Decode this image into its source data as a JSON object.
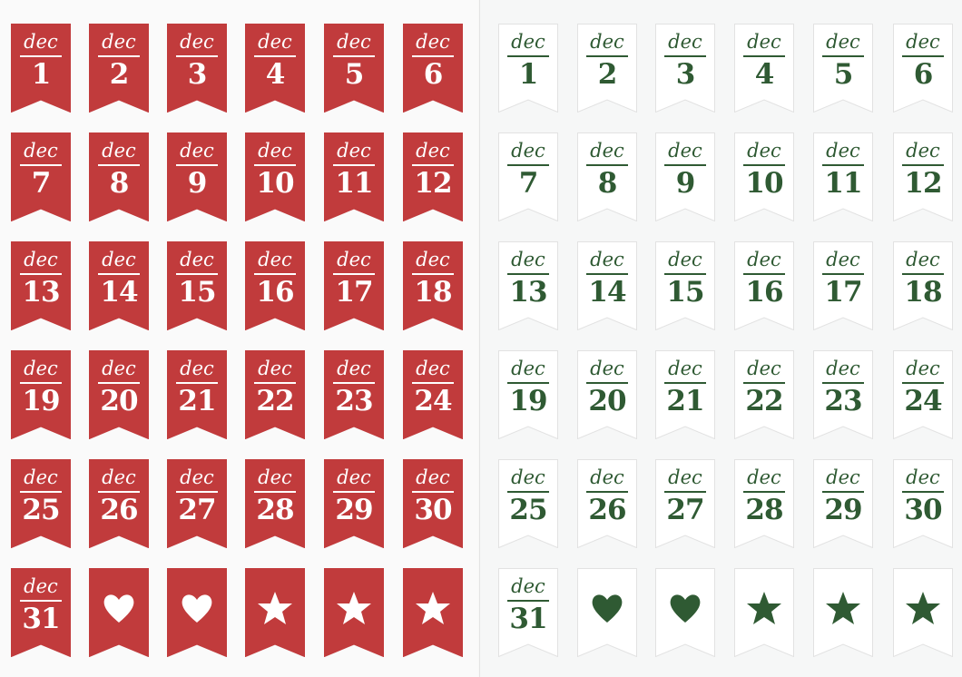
{
  "colors": {
    "red": "#c13b3c",
    "green": "#2f5a33",
    "white": "#ffffff",
    "flag_border": "#e2e2e2"
  },
  "sheets": [
    {
      "name": "red-sheet",
      "flag_color": "#c13b3c",
      "text_color": "#ffffff",
      "stickers": [
        {
          "month": "dec",
          "day": "1"
        },
        {
          "month": "dec",
          "day": "2"
        },
        {
          "month": "dec",
          "day": "3"
        },
        {
          "month": "dec",
          "day": "4"
        },
        {
          "month": "dec",
          "day": "5"
        },
        {
          "month": "dec",
          "day": "6"
        },
        {
          "month": "dec",
          "day": "7"
        },
        {
          "month": "dec",
          "day": "8"
        },
        {
          "month": "dec",
          "day": "9"
        },
        {
          "month": "dec",
          "day": "10"
        },
        {
          "month": "dec",
          "day": "11"
        },
        {
          "month": "dec",
          "day": "12"
        },
        {
          "month": "dec",
          "day": "13"
        },
        {
          "month": "dec",
          "day": "14"
        },
        {
          "month": "dec",
          "day": "15"
        },
        {
          "month": "dec",
          "day": "16"
        },
        {
          "month": "dec",
          "day": "17"
        },
        {
          "month": "dec",
          "day": "18"
        },
        {
          "month": "dec",
          "day": "19"
        },
        {
          "month": "dec",
          "day": "20"
        },
        {
          "month": "dec",
          "day": "21"
        },
        {
          "month": "dec",
          "day": "22"
        },
        {
          "month": "dec",
          "day": "23"
        },
        {
          "month": "dec",
          "day": "24"
        },
        {
          "month": "dec",
          "day": "25"
        },
        {
          "month": "dec",
          "day": "26"
        },
        {
          "month": "dec",
          "day": "27"
        },
        {
          "month": "dec",
          "day": "28"
        },
        {
          "month": "dec",
          "day": "29"
        },
        {
          "month": "dec",
          "day": "30"
        },
        {
          "month": "dec",
          "day": "31"
        },
        {
          "icon": "heart-icon"
        },
        {
          "icon": "heart-icon"
        },
        {
          "icon": "star-icon"
        },
        {
          "icon": "star-icon"
        },
        {
          "icon": "star-icon"
        }
      ]
    },
    {
      "name": "white-sheet",
      "flag_color": "#ffffff",
      "text_color": "#2f5a33",
      "stickers": [
        {
          "month": "dec",
          "day": "1"
        },
        {
          "month": "dec",
          "day": "2"
        },
        {
          "month": "dec",
          "day": "3"
        },
        {
          "month": "dec",
          "day": "4"
        },
        {
          "month": "dec",
          "day": "5"
        },
        {
          "month": "dec",
          "day": "6"
        },
        {
          "month": "dec",
          "day": "7"
        },
        {
          "month": "dec",
          "day": "8"
        },
        {
          "month": "dec",
          "day": "9"
        },
        {
          "month": "dec",
          "day": "10"
        },
        {
          "month": "dec",
          "day": "11"
        },
        {
          "month": "dec",
          "day": "12"
        },
        {
          "month": "dec",
          "day": "13"
        },
        {
          "month": "dec",
          "day": "14"
        },
        {
          "month": "dec",
          "day": "15"
        },
        {
          "month": "dec",
          "day": "16"
        },
        {
          "month": "dec",
          "day": "17"
        },
        {
          "month": "dec",
          "day": "18"
        },
        {
          "month": "dec",
          "day": "19"
        },
        {
          "month": "dec",
          "day": "20"
        },
        {
          "month": "dec",
          "day": "21"
        },
        {
          "month": "dec",
          "day": "22"
        },
        {
          "month": "dec",
          "day": "23"
        },
        {
          "month": "dec",
          "day": "24"
        },
        {
          "month": "dec",
          "day": "25"
        },
        {
          "month": "dec",
          "day": "26"
        },
        {
          "month": "dec",
          "day": "27"
        },
        {
          "month": "dec",
          "day": "28"
        },
        {
          "month": "dec",
          "day": "29"
        },
        {
          "month": "dec",
          "day": "30"
        },
        {
          "month": "dec",
          "day": "31"
        },
        {
          "icon": "heart-icon"
        },
        {
          "icon": "heart-icon"
        },
        {
          "icon": "star-icon"
        },
        {
          "icon": "star-icon"
        },
        {
          "icon": "star-icon"
        }
      ]
    }
  ]
}
